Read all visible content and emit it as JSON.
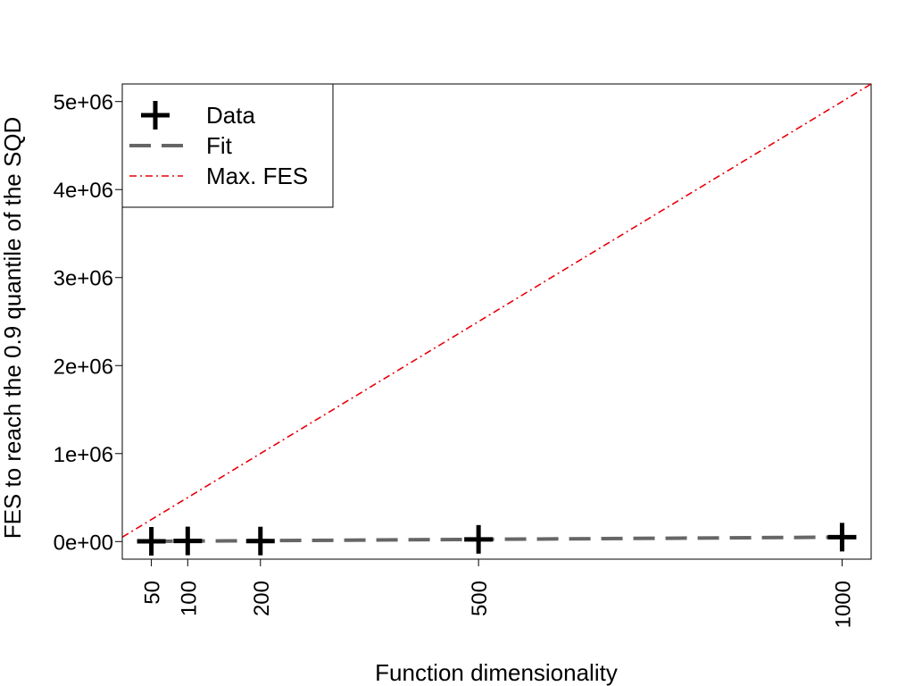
{
  "chart_data": {
    "type": "scatter",
    "xlabel": "Function dimensionality",
    "ylabel": "FES to reach the 0.9 quantile of the SQD",
    "x_ticks": [
      50,
      100,
      200,
      500,
      1000
    ],
    "x_tick_labels": [
      "50",
      "100",
      "200",
      "500",
      "1000"
    ],
    "y_ticks": [
      0,
      1000000,
      2000000,
      3000000,
      4000000,
      5000000
    ],
    "y_tick_labels": [
      "0e+00",
      "1e+06",
      "2e+06",
      "3e+06",
      "4e+06",
      "5e+06"
    ],
    "xlim": [
      10,
      1040
    ],
    "ylim": [
      -200000,
      5200000
    ],
    "grid": false,
    "legend_position": "top-left",
    "series": [
      {
        "name": "Data",
        "kind": "points",
        "marker": "plus",
        "color": "#000000",
        "x": [
          50,
          100,
          200,
          500,
          1000
        ],
        "y": [
          3000,
          7000,
          6000,
          25000,
          50000
        ]
      },
      {
        "name": "Fit",
        "kind": "line",
        "dash": "dashed",
        "color": "#666666",
        "x": [
          50,
          1000
        ],
        "y": [
          2500,
          50000
        ]
      },
      {
        "name": "Max. FES",
        "kind": "line",
        "dash": "dotdash",
        "color": "#e8000b",
        "x": [
          10,
          1040
        ],
        "y": [
          50000,
          5200000
        ]
      }
    ]
  }
}
